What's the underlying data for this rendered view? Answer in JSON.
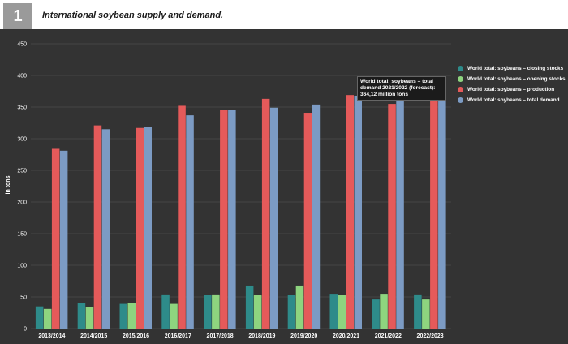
{
  "figure": {
    "number": "1",
    "title": "International soybean supply and demand."
  },
  "tooltip": {
    "line1": "World total: soybeans – total",
    "line2": "demand 2021/2022 (forecast):",
    "line3": "364,12 million tons"
  },
  "chart_data": {
    "type": "bar",
    "categories": [
      "2013/2014",
      "2014/2015",
      "2015/2016",
      "2016/2017",
      "2017/2018",
      "2018/2019",
      "2019/2020",
      "2020/2021",
      "2021/2022",
      "2022/2023"
    ],
    "series": [
      {
        "name": "World total: soybeans – closing stocks",
        "color": "#2e8b8a",
        "values": [
          35,
          40,
          39,
          54,
          53,
          68,
          53,
          55,
          46,
          54
        ]
      },
      {
        "name": "World total: soybeans – opening stocks",
        "color": "#8ed47f",
        "values": [
          31,
          34,
          40,
          39,
          54,
          53,
          68,
          53,
          55,
          46
        ]
      },
      {
        "name": "World total: soybeans – production",
        "color": "#e55a5a",
        "values": [
          284,
          321,
          317,
          352,
          345,
          363,
          341,
          369,
          355,
          391
        ]
      },
      {
        "name": "World total: soybeans – total demand",
        "color": "#7c9bc4",
        "values": [
          281,
          315,
          318,
          337,
          345,
          349,
          354,
          368,
          364,
          380
        ]
      }
    ],
    "ylabel": "in tons",
    "xlabel": "",
    "ylim": [
      0,
      450
    ],
    "yticks": [
      0,
      50,
      100,
      150,
      200,
      250,
      300,
      350,
      400,
      450
    ],
    "grid": true,
    "legend_position": "right"
  }
}
